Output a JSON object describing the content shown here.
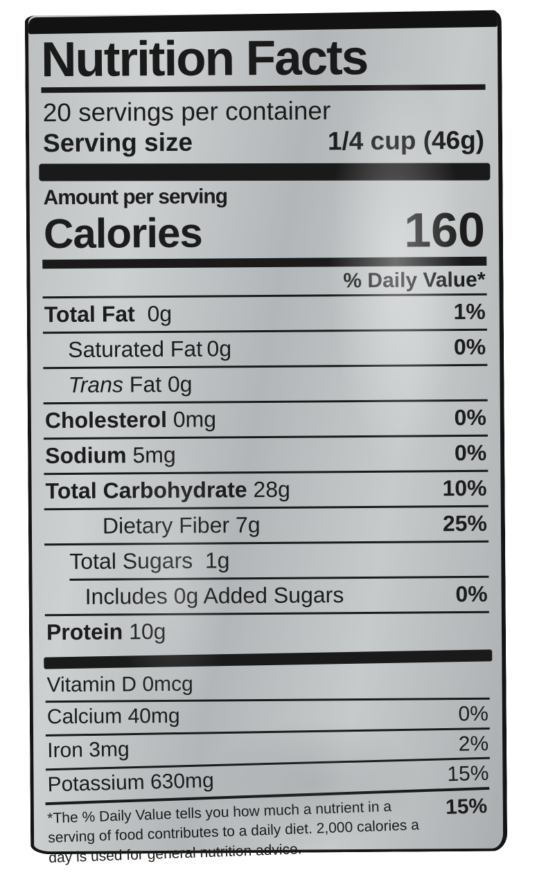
{
  "label": {
    "title": "Nutrition Facts",
    "servings_per_container": "20 servings per container",
    "serving_size_label": "Serving size",
    "serving_size_value": "1/4 cup (46g)",
    "amount_per_serving": "Amount per serving",
    "calories_label": "Calories",
    "calories_value": "160",
    "daily_value_header": "% Daily Value*",
    "rows": [
      {
        "label": "Total Fat",
        "amount": "0g",
        "dv": "1%"
      },
      {
        "label": "Saturated Fat",
        "amount": "0g",
        "dv": "0%"
      },
      {
        "label_italic": "Trans",
        "label_rest": "Fat",
        "amount": "0g",
        "dv": ""
      },
      {
        "label": "Cholesterol",
        "amount": "0mg",
        "dv": "0%"
      },
      {
        "label": "Sodium",
        "amount": "5mg",
        "dv": "0%"
      },
      {
        "label": "Total Carbohydrate",
        "amount": "28g",
        "dv": "10%"
      },
      {
        "label": "Dietary Fiber",
        "amount": "7g",
        "dv": "25%"
      },
      {
        "label": "Total Sugars",
        "amount": "1g",
        "dv": ""
      },
      {
        "label": "Includes 0g Added Sugars",
        "amount": "",
        "dv": "0%"
      },
      {
        "label": "Protein",
        "amount": "10g",
        "dv": ""
      }
    ],
    "micronutrients": [
      {
        "label": "Vitamin D",
        "amount": "0mcg",
        "dv": ""
      },
      {
        "label": "Calcium",
        "amount": "40mg",
        "dv": "0%"
      },
      {
        "label": "Iron",
        "amount": "3mg",
        "dv": "2%"
      },
      {
        "label": "Potassium",
        "amount": "630mg",
        "dv": "15%"
      }
    ],
    "footnote_dv": "15%",
    "footnote": "*The % Daily Value tells you how much a nutrient in a serving of food contributes to a daily diet. 2,000 calories a day is used for general nutrition advice."
  }
}
